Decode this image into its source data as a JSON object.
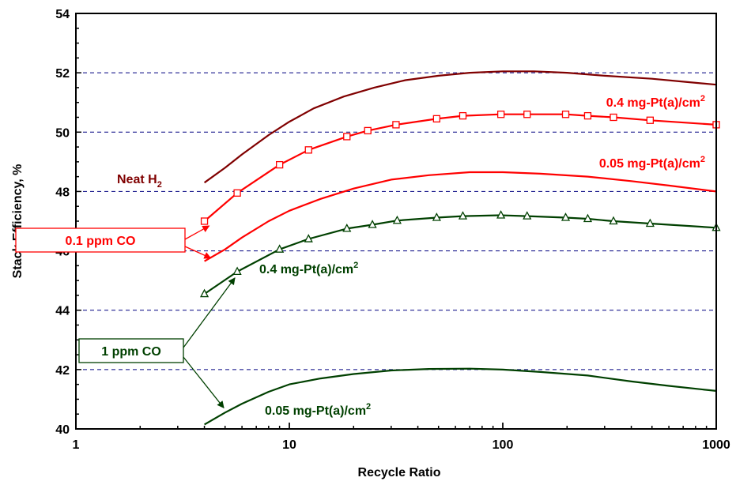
{
  "chart_data": {
    "type": "line",
    "xscale": "log",
    "title": "",
    "xlabel": "Recycle Ratio",
    "ylabel": "Stack Efficiency, %",
    "xlim": [
      1,
      1000
    ],
    "ylim": [
      40,
      54
    ],
    "grid": "horizontal dashed",
    "xticks": [
      "1",
      "10",
      "100",
      "1000"
    ],
    "yticks": [
      "40",
      "42",
      "44",
      "46",
      "48",
      "50",
      "52",
      "54"
    ],
    "colors": {
      "neat": "#800000",
      "red": "#ff0000",
      "green": "#004000",
      "grid": "#000080"
    },
    "series": [
      {
        "key": "neat",
        "label_text": "Neat H",
        "label_sub": "2",
        "color": "#800000",
        "marker": "none",
        "x": [
          4,
          5,
          6,
          8,
          10,
          13,
          18,
          25,
          35,
          50,
          70,
          100,
          140,
          200,
          300,
          500,
          700,
          1000
        ],
        "y": [
          48.3,
          48.8,
          49.25,
          49.9,
          50.35,
          50.8,
          51.2,
          51.5,
          51.75,
          51.9,
          52.0,
          52.05,
          52.05,
          52.0,
          51.9,
          51.8,
          51.7,
          51.6
        ]
      },
      {
        "key": "red_04",
        "label_text": "0.4 mg-Pt(a)/cm",
        "label_sup": "2",
        "color": "#ff0000",
        "marker": "square",
        "x": [
          4,
          5.7,
          9,
          12.3,
          18.6,
          23.3,
          31.6,
          49,
          65,
          98,
          130,
          197,
          250,
          330,
          490,
          1000
        ],
        "y": [
          47.0,
          47.95,
          48.9,
          49.4,
          49.85,
          50.05,
          50.25,
          50.45,
          50.55,
          50.6,
          50.6,
          50.6,
          50.55,
          50.5,
          50.4,
          50.25
        ]
      },
      {
        "key": "red_005",
        "label_text": "0.05 mg-Pt(a)/cm",
        "label_sup": "2",
        "color": "#ff0000",
        "marker": "none",
        "x": [
          4,
          5,
          6,
          8,
          10,
          14,
          20,
          30,
          45,
          70,
          100,
          150,
          250,
          400,
          600,
          1000
        ],
        "y": [
          45.65,
          46.05,
          46.45,
          47.0,
          47.35,
          47.75,
          48.1,
          48.4,
          48.55,
          48.65,
          48.65,
          48.6,
          48.5,
          48.35,
          48.2,
          48.0
        ]
      },
      {
        "key": "green_04",
        "label_text": "0.4 mg-Pt(a)/cm",
        "label_sup": "2",
        "color": "#004000",
        "marker": "triangle",
        "x": [
          4,
          5.7,
          9,
          12.3,
          18.6,
          24.5,
          32,
          49,
          65,
          98,
          130,
          197,
          250,
          330,
          490,
          1000
        ],
        "y": [
          44.55,
          45.3,
          46.05,
          46.4,
          46.75,
          46.88,
          47.02,
          47.12,
          47.17,
          47.2,
          47.17,
          47.12,
          47.08,
          47.0,
          46.92,
          46.78
        ]
      },
      {
        "key": "green_005",
        "label_text": "0.05 mg-Pt(a)/cm",
        "label_sup": "2",
        "color": "#004000",
        "marker": "none",
        "x": [
          4,
          5,
          6,
          8,
          10,
          14,
          20,
          30,
          45,
          70,
          100,
          150,
          250,
          400,
          600,
          1000
        ],
        "y": [
          40.15,
          40.55,
          40.85,
          41.25,
          41.5,
          41.7,
          41.85,
          41.97,
          42.02,
          42.03,
          42.0,
          41.92,
          41.8,
          41.6,
          41.45,
          41.28
        ]
      }
    ],
    "annotations": [
      {
        "key": "co01",
        "text": "0.1 ppm CO",
        "color": "#ff0000"
      },
      {
        "key": "co1",
        "text": "1 ppm CO",
        "color": "#004000"
      }
    ]
  }
}
